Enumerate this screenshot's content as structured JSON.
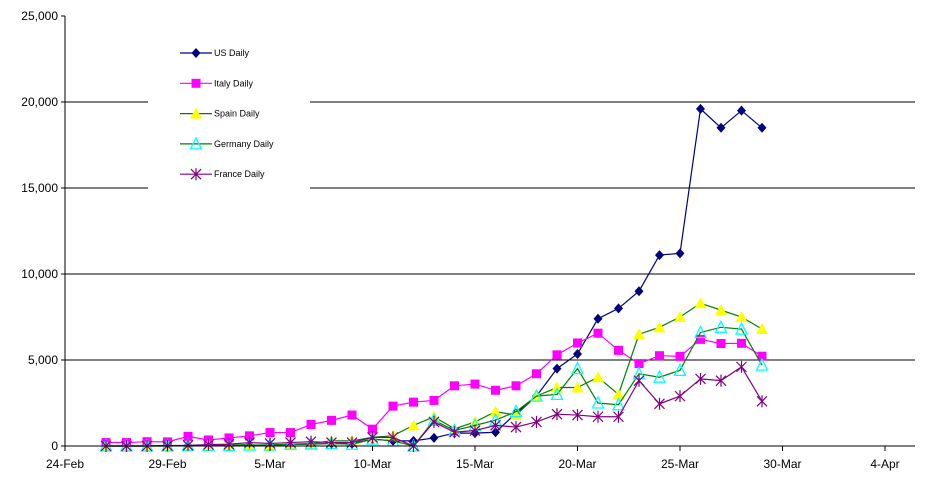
{
  "chart_data": {
    "type": "line",
    "title": "",
    "xlabel": "",
    "ylabel": "",
    "ylim": [
      0,
      25000
    ],
    "y_ticks": [
      "0",
      "5,000",
      "10,000",
      "15,000",
      "20,000",
      "25,000"
    ],
    "y_tick_values": [
      0,
      5000,
      10000,
      15000,
      20000,
      25000
    ],
    "x_ticks": [
      "24-Feb",
      "29-Feb",
      "5-Mar",
      "10-Mar",
      "15-Mar",
      "20-Mar",
      "25-Mar",
      "30-Mar",
      "4-Apr"
    ],
    "x_tick_days": [
      0,
      5,
      10,
      15,
      20,
      25,
      30,
      35,
      40
    ],
    "x_start_date": "24-Feb",
    "grid": true,
    "legend_position": "top-left",
    "x_days": [
      2,
      3,
      4,
      5,
      6,
      7,
      8,
      9,
      10,
      11,
      12,
      13,
      14,
      15,
      16,
      17,
      18,
      19,
      20,
      21,
      22,
      23,
      24,
      25,
      26,
      27,
      28,
      29,
      30,
      31,
      32,
      33,
      34
    ],
    "series": [
      {
        "name": "US Daily",
        "color": "#000080",
        "fill": "#000080",
        "marker": "diamond",
        "values": [
          0,
          0,
          0,
          20,
          20,
          20,
          30,
          50,
          70,
          90,
          110,
          150,
          130,
          400,
          300,
          300,
          470,
          750,
          750,
          800,
          1900,
          2900,
          4500,
          5350,
          7400,
          8000,
          9000,
          11100,
          11200,
          19600,
          18500,
          19500,
          18500
        ]
      },
      {
        "name": "Italy Daily",
        "color": "#FF00FF",
        "fill": "#FF00FF",
        "marker": "square",
        "values": [
          200,
          200,
          250,
          240,
          560,
          350,
          470,
          590,
          780,
          780,
          1250,
          1490,
          1800,
          980,
          2320,
          2550,
          2650,
          3500,
          3600,
          3240,
          3500,
          4200,
          5300,
          5990,
          6560,
          5560,
          4790,
          5250,
          5210,
          6200,
          5960,
          5970,
          5220
        ]
      },
      {
        "name": "Spain Daily",
        "color": "#008000",
        "fill": "#FFFF00",
        "marker": "triangle",
        "values": [
          0,
          0,
          0,
          0,
          20,
          30,
          50,
          80,
          0,
          100,
          150,
          300,
          300,
          500,
          600,
          1200,
          1700,
          1000,
          1400,
          2000,
          1800,
          2900,
          3400,
          3400,
          4000,
          3000,
          6500,
          6900,
          7500,
          8300,
          7900,
          7500,
          6800
        ]
      },
      {
        "name": "Germany Daily",
        "color": "#008000",
        "fill": "none",
        "stroke": "#00FFFF",
        "marker": "triangle-open",
        "values": [
          0,
          0,
          0,
          0,
          30,
          20,
          30,
          50,
          60,
          100,
          120,
          150,
          100,
          400,
          300,
          0,
          1500,
          900,
          1200,
          1500,
          2000,
          2900,
          3000,
          4500,
          2500,
          2400,
          4200,
          4000,
          4400,
          6600,
          6900,
          6800,
          4700
        ]
      },
      {
        "name": "France Daily",
        "color": "#800080",
        "fill": "#800080",
        "marker": "star",
        "values": [
          0,
          0,
          0,
          20,
          40,
          80,
          100,
          200,
          150,
          200,
          250,
          200,
          200,
          500,
          500,
          0,
          1400,
          800,
          900,
          1200,
          1100,
          1400,
          1850,
          1800,
          1700,
          1700,
          3800,
          2450,
          2900,
          3900,
          3800,
          4600,
          2600
        ]
      }
    ]
  }
}
